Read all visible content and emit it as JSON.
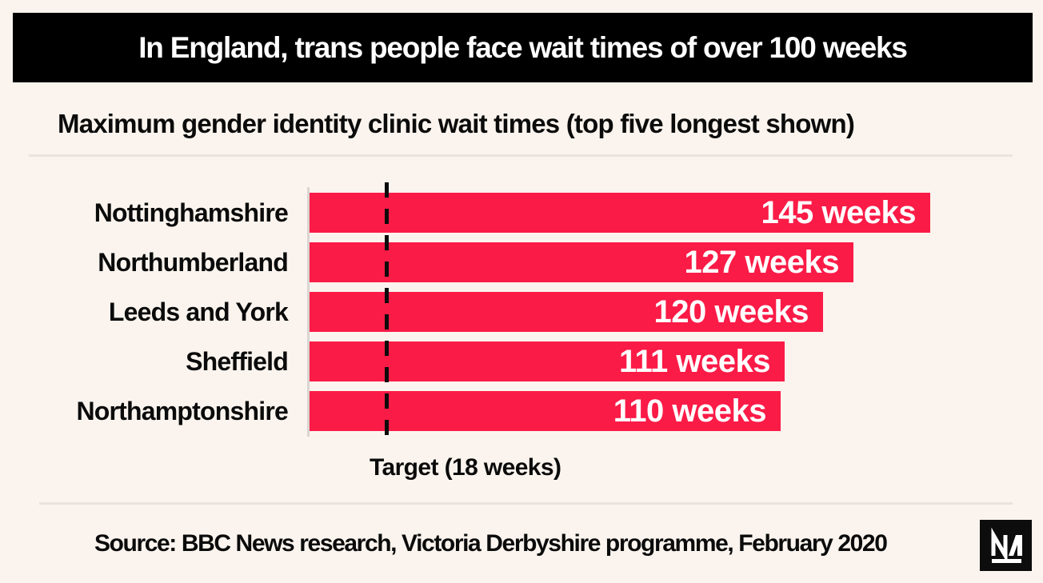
{
  "header": {
    "title": "In England, trans people face wait times of over 100 weeks"
  },
  "subtitle": "Maximum gender identity clinic wait times (top five longest shown)",
  "chart_data": {
    "type": "bar",
    "orientation": "horizontal",
    "title": "Maximum gender identity clinic wait times (top five longest shown)",
    "categories": [
      "Nottinghamshire",
      "Northumberland",
      "Leeds and York",
      "Sheffield",
      "Northamptonshire"
    ],
    "values": [
      145,
      127,
      120,
      111,
      110
    ],
    "value_labels": [
      "145 weeks",
      "127 weeks",
      "120 weeks",
      "111 weeks",
      "110 weeks"
    ],
    "unit": "weeks",
    "xlabel": "",
    "ylabel": "",
    "xlim": [
      0,
      150
    ],
    "grid": false,
    "legend": false,
    "target_line": {
      "value": 18,
      "label": "Target (18 weeks)"
    },
    "bar_color": "#FB1B47"
  },
  "footer": {
    "source": "Source: BBC News research, Victoria Derbyshire programme, February 2020",
    "logo": "novara-media-logo"
  },
  "colors": {
    "background": "#FBF4EE",
    "banner": "#000000",
    "banner_text": "#FFFFFF",
    "bar": "#FB1B47",
    "bar_value_text": "#FFFFFF",
    "divider": "#E8E3DE",
    "text": "#0B0B0B"
  }
}
